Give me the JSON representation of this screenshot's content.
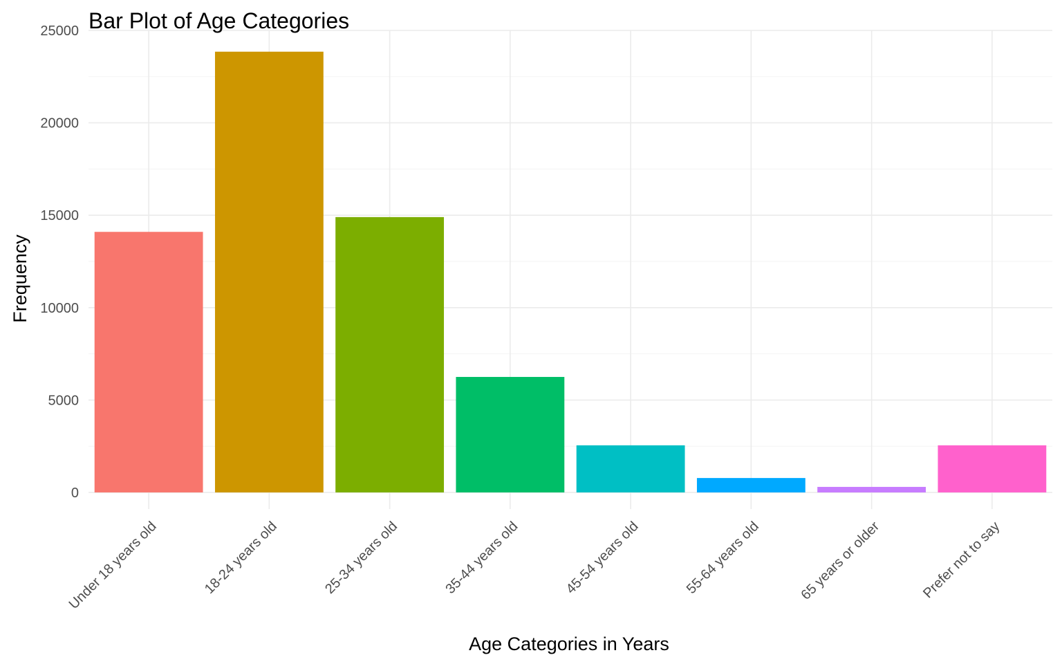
{
  "chart_data": {
    "type": "bar",
    "title": "Bar Plot of Age Categories",
    "xlabel": "Age Categories in Years",
    "ylabel": "Frequency",
    "categories": [
      "Under 18 years old",
      "18-24 years old",
      "25-34 years old",
      "35-44 years old",
      "45-54 years old",
      "55-64 years old",
      "65 years or older",
      "Prefer not to say"
    ],
    "values": [
      14100,
      23850,
      14900,
      6250,
      2550,
      780,
      300,
      2550
    ],
    "colors": [
      "#F8766D",
      "#CD9600",
      "#7CAE00",
      "#00BE67",
      "#00BFC4",
      "#00A9FF",
      "#C77CFF",
      "#FF61CC"
    ],
    "yticks": [
      0,
      5000,
      10000,
      15000,
      20000,
      25000
    ],
    "ylim": [
      -900,
      25000
    ],
    "grid": true,
    "legend": "none"
  }
}
